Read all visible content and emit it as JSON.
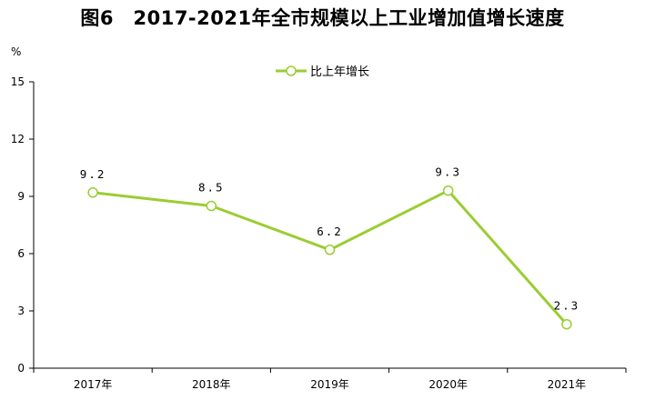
{
  "chart_data": {
    "type": "line",
    "title": "图6　2017-2021年全市规模以上工业增加值增长速度",
    "unit": "%",
    "categories": [
      "2017年",
      "2018年",
      "2019年",
      "2020年",
      "2021年"
    ],
    "series": [
      {
        "name": "比上年增长",
        "values": [
          9.2,
          8.5,
          6.2,
          9.3,
          2.3
        ],
        "labels": [
          "9.2",
          "8.5",
          "6.2",
          "9.3",
          "2.3"
        ]
      }
    ],
    "ylim": [
      0,
      15
    ],
    "yticks": [
      "0",
      "3",
      "6",
      "9",
      "12",
      "15"
    ],
    "grid": false,
    "legend": "top-center",
    "color": "#9ACD32"
  }
}
